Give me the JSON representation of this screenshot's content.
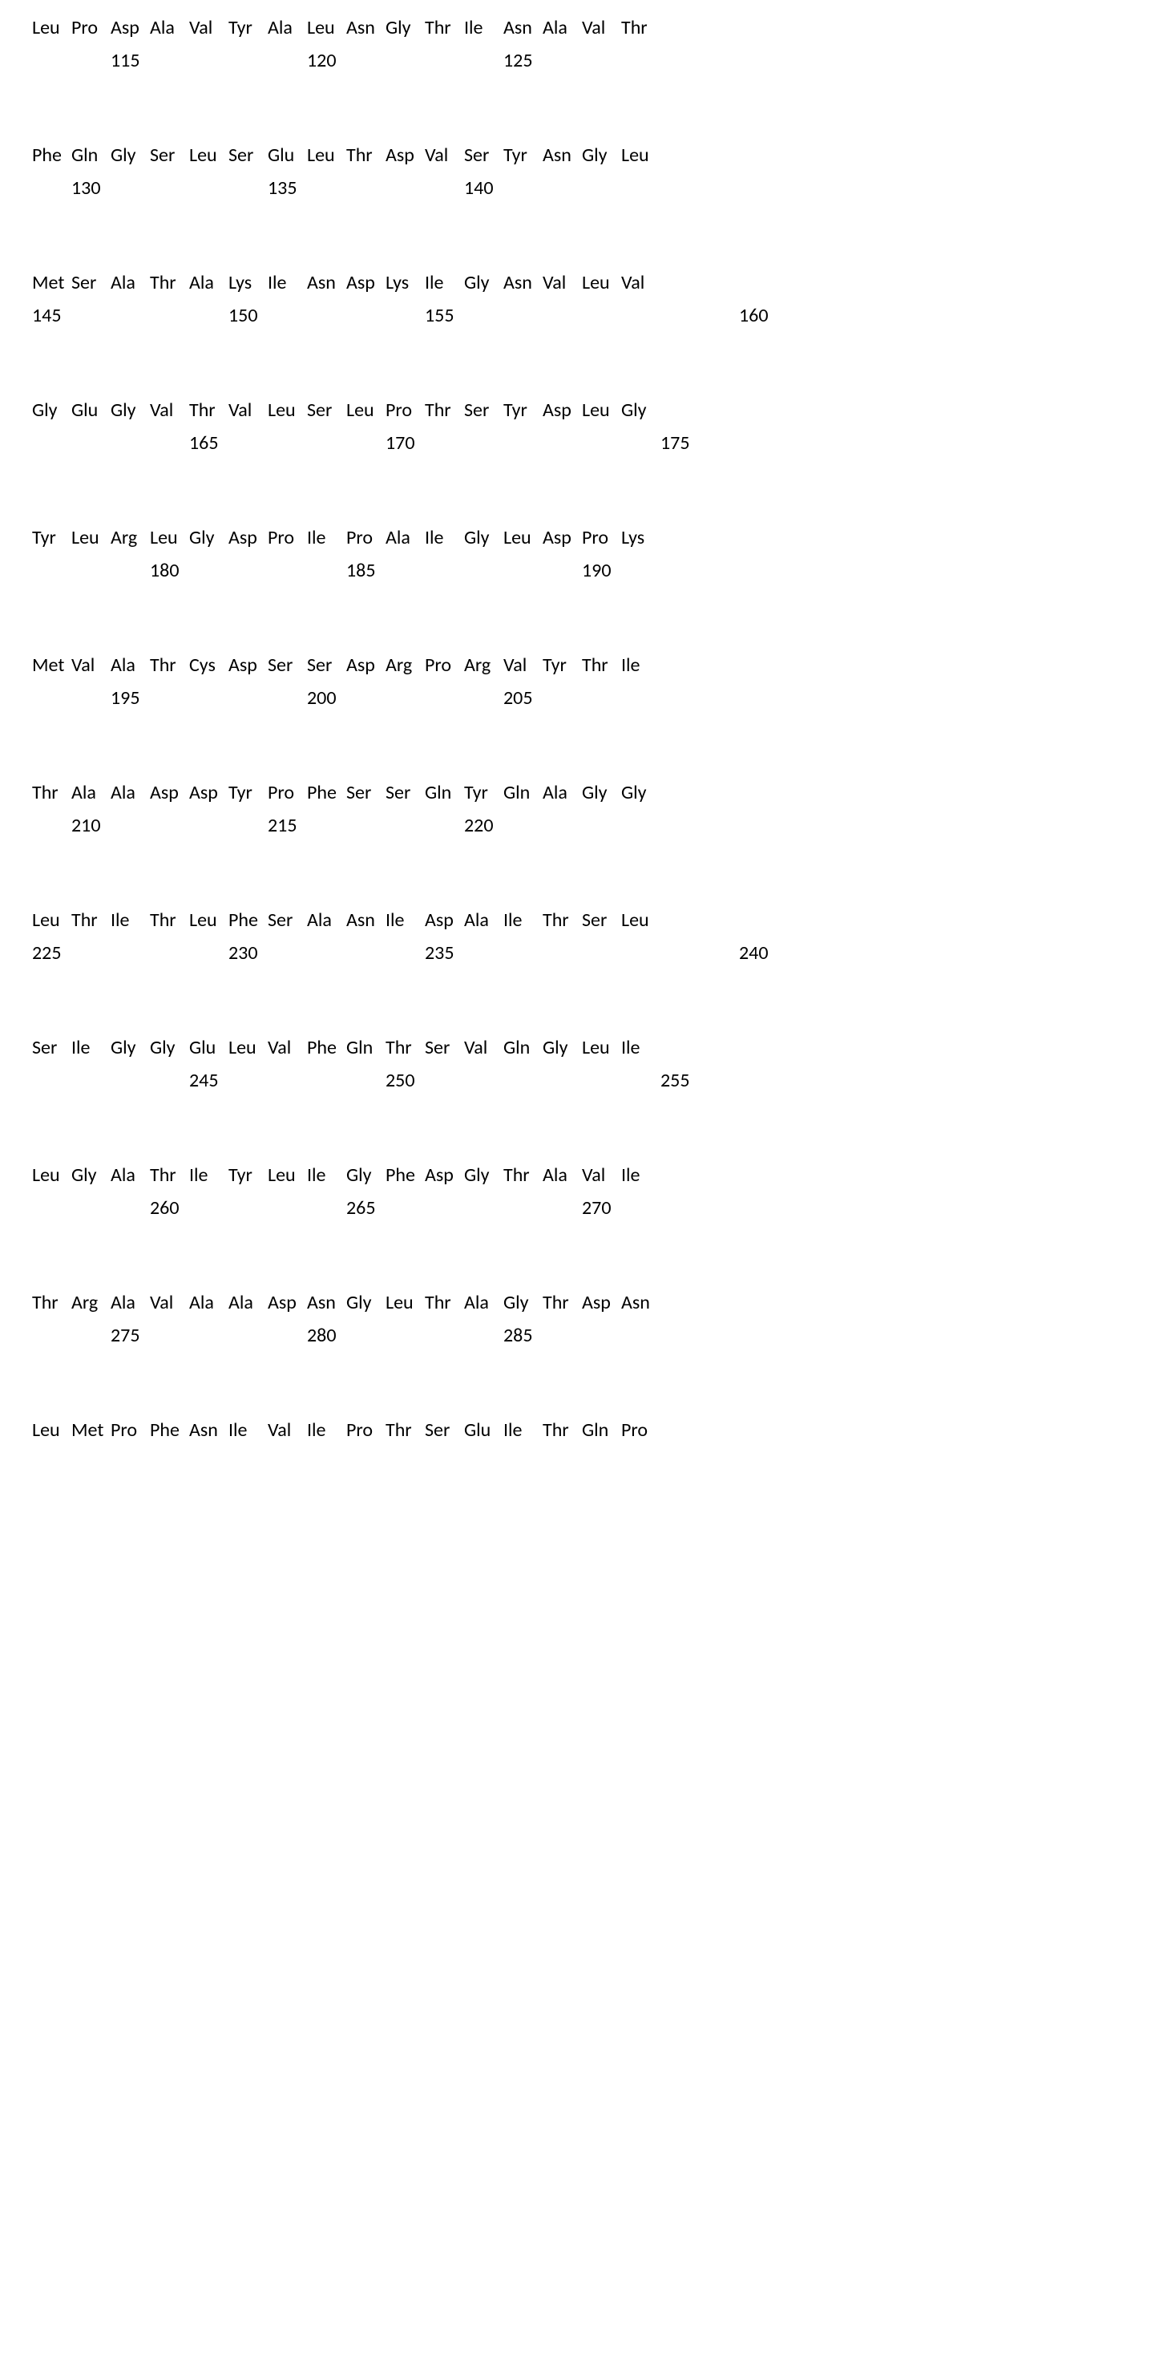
{
  "font_family": "Calibri, Arial, sans-serif",
  "font_size": 24,
  "text_color": "#000000",
  "background_color": "#ffffff",
  "residue_cell_width": 49,
  "block_spacing": 90,
  "blocks": [
    {
      "residues": [
        "Leu",
        "Pro",
        "Asp",
        "Ala",
        "Val",
        "Tyr",
        "Ala",
        "Leu",
        "Asn",
        "Gly",
        "Thr",
        "Ile",
        "Asn",
        "Ala",
        "Val",
        "Thr"
      ],
      "numbers": [
        {
          "label": "115",
          "col": 2
        },
        {
          "label": "120",
          "col": 7
        },
        {
          "label": "125",
          "col": 12
        }
      ]
    },
    {
      "residues": [
        "Phe",
        "Gln",
        "Gly",
        "Ser",
        "Leu",
        "Ser",
        "Glu",
        "Leu",
        "Thr",
        "Asp",
        "Val",
        "Ser",
        "Tyr",
        "Asn",
        "Gly",
        "Leu"
      ],
      "numbers": [
        {
          "label": "130",
          "col": 1
        },
        {
          "label": "135",
          "col": 6
        },
        {
          "label": "140",
          "col": 11
        }
      ]
    },
    {
      "residues": [
        "Met",
        "Ser",
        "Ala",
        "Thr",
        "Ala",
        "Lys",
        "Ile",
        "Asn",
        "Asp",
        "Lys",
        "Ile",
        "Gly",
        "Asn",
        "Val",
        "Leu",
        "Val"
      ],
      "numbers": [
        {
          "label": "145",
          "col": 0
        },
        {
          "label": "150",
          "col": 5
        },
        {
          "label": "155",
          "col": 10
        },
        {
          "label": "160",
          "col": 18
        }
      ]
    },
    {
      "residues": [
        "Gly",
        "Glu",
        "Gly",
        "Val",
        "Thr",
        "Val",
        "Leu",
        "Ser",
        "Leu",
        "Pro",
        "Thr",
        "Ser",
        "Tyr",
        "Asp",
        "Leu",
        "Gly"
      ],
      "numbers": [
        {
          "label": "165",
          "col": 4
        },
        {
          "label": "170",
          "col": 9
        },
        {
          "label": "175",
          "col": 16
        }
      ]
    },
    {
      "residues": [
        "Tyr",
        "Leu",
        "Arg",
        "Leu",
        "Gly",
        "Asp",
        "Pro",
        "Ile",
        "Pro",
        "Ala",
        "Ile",
        "Gly",
        "Leu",
        "Asp",
        "Pro",
        "Lys"
      ],
      "numbers": [
        {
          "label": "180",
          "col": 3
        },
        {
          "label": "185",
          "col": 8
        },
        {
          "label": "190",
          "col": 14
        }
      ]
    },
    {
      "residues": [
        "Met",
        "Val",
        "Ala",
        "Thr",
        "Cys",
        "Asp",
        "Ser",
        "Ser",
        "Asp",
        "Arg",
        "Pro",
        "Arg",
        "Val",
        "Tyr",
        "Thr",
        "Ile"
      ],
      "numbers": [
        {
          "label": "195",
          "col": 2
        },
        {
          "label": "200",
          "col": 7
        },
        {
          "label": "205",
          "col": 12
        }
      ]
    },
    {
      "residues": [
        "Thr",
        "Ala",
        "Ala",
        "Asp",
        "Asp",
        "Tyr",
        "Pro",
        "Phe",
        "Ser",
        "Ser",
        "Gln",
        "Tyr",
        "Gln",
        "Ala",
        "Gly",
        "Gly"
      ],
      "numbers": [
        {
          "label": "210",
          "col": 1
        },
        {
          "label": "215",
          "col": 6
        },
        {
          "label": "220",
          "col": 11
        }
      ]
    },
    {
      "residues": [
        "Leu",
        "Thr",
        "Ile",
        "Thr",
        "Leu",
        "Phe",
        "Ser",
        "Ala",
        "Asn",
        "Ile",
        "Asp",
        "Ala",
        "Ile",
        "Thr",
        "Ser",
        "Leu"
      ],
      "numbers": [
        {
          "label": "225",
          "col": 0
        },
        {
          "label": "230",
          "col": 5
        },
        {
          "label": "235",
          "col": 10
        },
        {
          "label": "240",
          "col": 18
        }
      ]
    },
    {
      "residues": [
        "Ser",
        "Ile",
        "Gly",
        "Gly",
        "Glu",
        "Leu",
        "Val",
        "Phe",
        "Gln",
        "Thr",
        "Ser",
        "Val",
        "Gln",
        "Gly",
        "Leu",
        "Ile"
      ],
      "numbers": [
        {
          "label": "245",
          "col": 4
        },
        {
          "label": "250",
          "col": 9
        },
        {
          "label": "255",
          "col": 16
        }
      ]
    },
    {
      "residues": [
        "Leu",
        "Gly",
        "Ala",
        "Thr",
        "Ile",
        "Tyr",
        "Leu",
        "Ile",
        "Gly",
        "Phe",
        "Asp",
        "Gly",
        "Thr",
        "Ala",
        "Val",
        "Ile"
      ],
      "numbers": [
        {
          "label": "260",
          "col": 3
        },
        {
          "label": "265",
          "col": 8
        },
        {
          "label": "270",
          "col": 14
        }
      ]
    },
    {
      "residues": [
        "Thr",
        "Arg",
        "Ala",
        "Val",
        "Ala",
        "Ala",
        "Asp",
        "Asn",
        "Gly",
        "Leu",
        "Thr",
        "Ala",
        "Gly",
        "Thr",
        "Asp",
        "Asn"
      ],
      "numbers": [
        {
          "label": "275",
          "col": 2
        },
        {
          "label": "280",
          "col": 7
        },
        {
          "label": "285",
          "col": 12
        }
      ]
    },
    {
      "residues": [
        "Leu",
        "Met",
        "Pro",
        "Phe",
        "Asn",
        "Ile",
        "Val",
        "Ile",
        "Pro",
        "Thr",
        "Ser",
        "Glu",
        "Ile",
        "Thr",
        "Gln",
        "Pro"
      ],
      "numbers": []
    }
  ]
}
